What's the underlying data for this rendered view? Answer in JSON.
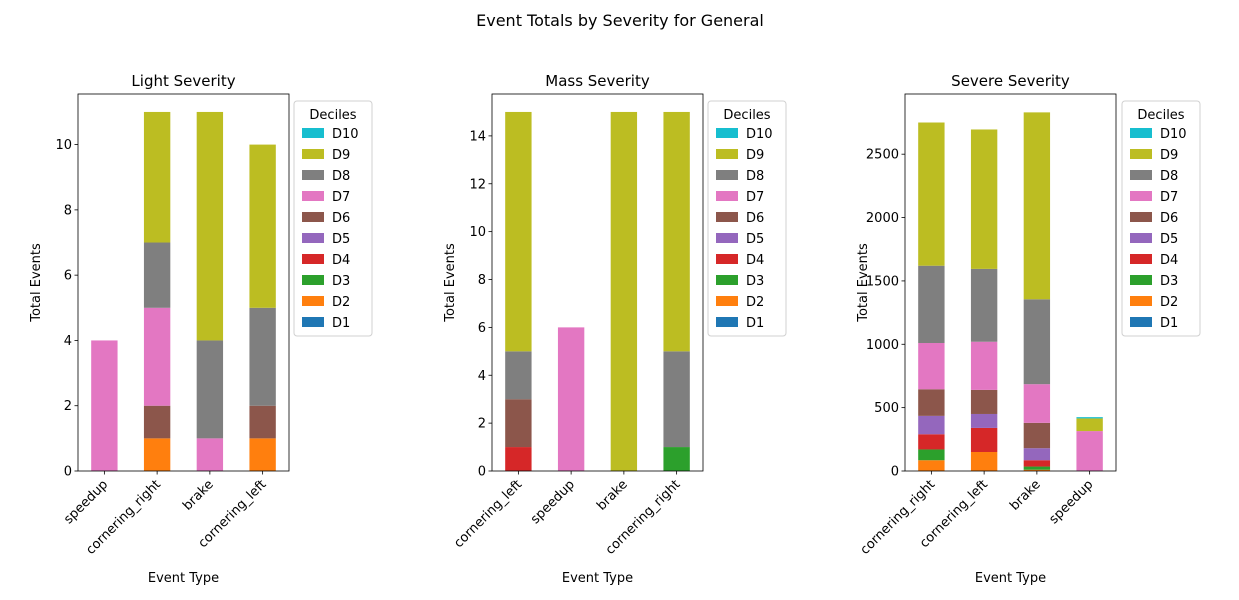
{
  "figure_title": "Event Totals by Severity for General",
  "legend_title": "Deciles",
  "deciles": [
    "D1",
    "D2",
    "D3",
    "D4",
    "D5",
    "D6",
    "D7",
    "D8",
    "D9",
    "D10"
  ],
  "decile_colors": [
    "#1f77b4",
    "#ff7f0e",
    "#2ca02c",
    "#d62728",
    "#9467bd",
    "#8c564b",
    "#e377c2",
    "#7f7f7f",
    "#bcbd22",
    "#17becf"
  ],
  "chart_data": [
    {
      "type": "bar",
      "stacked": true,
      "title": "Light Severity",
      "xlabel": "Event Type",
      "ylabel": "Total Events",
      "ylim": [
        0,
        11.55
      ],
      "yticks": [
        0,
        2,
        4,
        6,
        8,
        10
      ],
      "categories": [
        "speedup",
        "cornering_right",
        "brake",
        "cornering_left"
      ],
      "legend": "outside right, top",
      "series": [
        {
          "name": "D1",
          "values": [
            0,
            0,
            0,
            0
          ]
        },
        {
          "name": "D2",
          "values": [
            0,
            1,
            0,
            1
          ]
        },
        {
          "name": "D3",
          "values": [
            0,
            0,
            0,
            0
          ]
        },
        {
          "name": "D4",
          "values": [
            0,
            0,
            0,
            0
          ]
        },
        {
          "name": "D5",
          "values": [
            0,
            0,
            0,
            0
          ]
        },
        {
          "name": "D6",
          "values": [
            0,
            1,
            0,
            1
          ]
        },
        {
          "name": "D7",
          "values": [
            4,
            3,
            1,
            0
          ]
        },
        {
          "name": "D8",
          "values": [
            0,
            2,
            3,
            3
          ]
        },
        {
          "name": "D9",
          "values": [
            0,
            4,
            7,
            5
          ]
        },
        {
          "name": "D10",
          "values": [
            0,
            0,
            0,
            0
          ]
        }
      ]
    },
    {
      "type": "bar",
      "stacked": true,
      "title": "Mass Severity",
      "xlabel": "Event Type",
      "ylabel": "Total Events",
      "ylim": [
        0,
        15.75
      ],
      "yticks": [
        0,
        2,
        4,
        6,
        8,
        10,
        12,
        14
      ],
      "categories": [
        "cornering_left",
        "speedup",
        "brake",
        "cornering_right"
      ],
      "legend": "outside right, top",
      "series": [
        {
          "name": "D1",
          "values": [
            0,
            0,
            0,
            0
          ]
        },
        {
          "name": "D2",
          "values": [
            0,
            0,
            0,
            0
          ]
        },
        {
          "name": "D3",
          "values": [
            0,
            0,
            0,
            1
          ]
        },
        {
          "name": "D4",
          "values": [
            1,
            0,
            0,
            0
          ]
        },
        {
          "name": "D5",
          "values": [
            0,
            0,
            0,
            0
          ]
        },
        {
          "name": "D6",
          "values": [
            2,
            0,
            0,
            0
          ]
        },
        {
          "name": "D7",
          "values": [
            0,
            6,
            0,
            0
          ]
        },
        {
          "name": "D8",
          "values": [
            2,
            0,
            0,
            4
          ]
        },
        {
          "name": "D9",
          "values": [
            10,
            0,
            15,
            10
          ]
        },
        {
          "name": "D10",
          "values": [
            0,
            0,
            0,
            0
          ]
        }
      ]
    },
    {
      "type": "bar",
      "stacked": true,
      "title": "Severe Severity",
      "xlabel": "Event Type",
      "ylabel": "Total Events",
      "ylim": [
        0,
        2975
      ],
      "yticks": [
        0,
        500,
        1000,
        1500,
        2000,
        2500
      ],
      "categories": [
        "cornering_right",
        "cornering_left",
        "brake",
        "speedup"
      ],
      "legend": "outside right, top",
      "series": [
        {
          "name": "D1",
          "values": [
            0,
            0,
            0,
            0
          ]
        },
        {
          "name": "D2",
          "values": [
            85,
            150,
            10,
            0
          ]
        },
        {
          "name": "D3",
          "values": [
            85,
            0,
            25,
            0
          ]
        },
        {
          "name": "D4",
          "values": [
            120,
            190,
            50,
            0
          ]
        },
        {
          "name": "D5",
          "values": [
            145,
            110,
            95,
            0
          ]
        },
        {
          "name": "D6",
          "values": [
            210,
            190,
            200,
            0
          ]
        },
        {
          "name": "D7",
          "values": [
            365,
            380,
            305,
            315
          ]
        },
        {
          "name": "D8",
          "values": [
            610,
            575,
            670,
            0
          ]
        },
        {
          "name": "D9",
          "values": [
            1130,
            1100,
            1475,
            100
          ]
        },
        {
          "name": "D10",
          "values": [
            0,
            0,
            0,
            10
          ]
        }
      ]
    }
  ]
}
